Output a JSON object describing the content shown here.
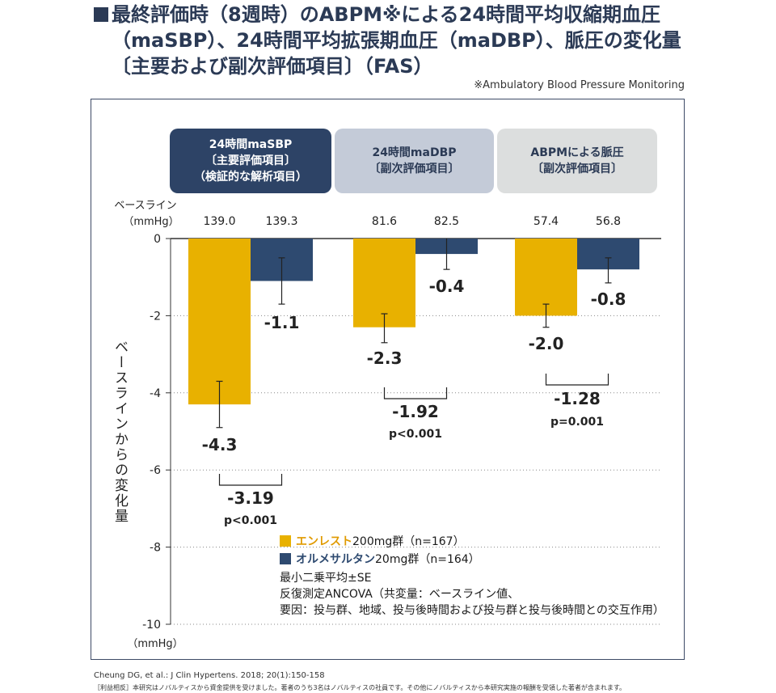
{
  "title": {
    "line1": "最終評価時（8週時）のABPM※による24時間平均収縮期血圧",
    "line2": "（maSBP）、24時間平均拡張期血圧（maDBP）、脈圧の変化量",
    "line3": "〔主要および副次評価項目〕（FAS）"
  },
  "note": "※Ambulatory Blood Pressure Monitoring",
  "headers": [
    {
      "line1": "24時間maSBP",
      "line2": "〔主要評価項目〕",
      "line3": "（検証的な解析項目）"
    },
    {
      "line1": "24時間maDBP",
      "line2": "〔副次評価項目〕",
      "line3": ""
    },
    {
      "line1": "ABPMによる脈圧",
      "line2": "〔副次評価項目〕",
      "line3": ""
    }
  ],
  "legend": {
    "entresto": {
      "brand": "エンレスト",
      "rest": "200mg群（n=167）"
    },
    "olmesartan": {
      "brand": "オルメサルタン",
      "rest": "20mg群（n=164）"
    }
  },
  "stat_notes": {
    "line1": "最小二乗平均±SE",
    "line2": "反復測定ANCOVA（共変量：ベースライン値、",
    "line3": "要因：投与群、地域、投与後時間および投与群と投与後時間との交互作用）"
  },
  "citation": "Cheung DG, et al.: J Clin Hypertens. 2018; 20(1):150-158",
  "disclosure": "［利益相反］本研究はノバルティスから資金提供を受けました。著者のうち3名はノバルティスの社員です。その他にノバルティスから本研究実施の報酬を受領した著者が含まれます。",
  "colors": {
    "entresto": "#e8b100",
    "olmesartan": "#2e4a70",
    "brand_entresto": "#e09a00",
    "brand_olmesartan": "#2e4a70"
  },
  "chart_data": {
    "type": "bar",
    "ylabel": "ベースラインからの変化量",
    "yunit": "（mmHg）",
    "ylim": [
      -10,
      0
    ],
    "yticks": [
      0,
      -2,
      -4,
      -6,
      -8,
      -10
    ],
    "ytick_labels": [
      "0",
      "-2",
      "-4",
      "-6",
      "-8",
      "-10"
    ],
    "grid": "dotted horizontal",
    "baseline_label": "ベースライン",
    "baseline_unit": "（mmHg）",
    "groups": [
      {
        "baselines": [
          "139.0",
          "139.3"
        ],
        "values": [
          -4.3,
          -1.1
        ],
        "labels": [
          "-4.3",
          "-1.1"
        ],
        "err_low": [
          -4.9,
          -1.7
        ],
        "err_high": [
          -3.7,
          -0.5
        ],
        "diff": "-3.19",
        "p": "p<0.001"
      },
      {
        "baselines": [
          "81.6",
          "82.5"
        ],
        "values": [
          -2.3,
          -0.4
        ],
        "labels": [
          "-2.3",
          "-0.4"
        ],
        "err_low": [
          -2.7,
          -0.8
        ],
        "err_high": [
          -1.95,
          0
        ],
        "diff": "-1.92",
        "p": "p<0.001"
      },
      {
        "baselines": [
          "57.4",
          "56.8"
        ],
        "values": [
          -2.0,
          -0.8
        ],
        "labels": [
          "-2.0",
          "-0.8"
        ],
        "err_low": [
          -2.3,
          -1.15
        ],
        "err_high": [
          -1.7,
          -0.5
        ],
        "diff": "-1.28",
        "p": "p=0.001"
      }
    ],
    "series": [
      {
        "name": "エンレスト200mg群（n=167）"
      },
      {
        "name": "オルメサルタン20mg群（n=164）"
      }
    ]
  }
}
